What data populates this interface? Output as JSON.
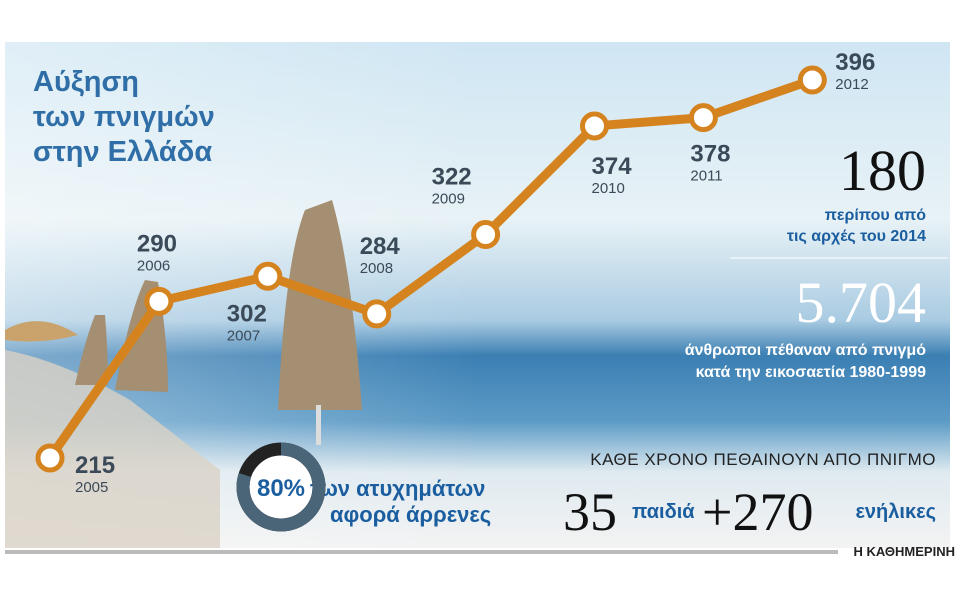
{
  "chart_data": {
    "type": "line",
    "title": [
      "Αύξηση",
      "των πνιγμών",
      "στην Ελλάδα"
    ],
    "categories": [
      "2005",
      "2006",
      "2007",
      "2008",
      "2009",
      "2010",
      "2011",
      "2012"
    ],
    "values": [
      215,
      290,
      302,
      284,
      322,
      374,
      378,
      396
    ],
    "color": "#d5831f",
    "annotations": {
      "since_2014": {
        "number": "180",
        "text": [
          "περίπου από",
          "τις αρχές του 2014"
        ]
      },
      "twenty_years": {
        "number": "5.704",
        "text": [
          "άνθρωποι πέθαναν από πνιγμό",
          "κατά την εικοσαετία 1980-1999"
        ]
      },
      "male_share": {
        "value": 80,
        "label": "80%",
        "text": [
          "των ατυχημάτων",
          "αφορά άρρενες"
        ]
      },
      "yearly": {
        "heading": "ΚΑΘΕ ΧΡΟΝΟ ΠΕΘΑΙΝΟΥΝ ΑΠΟ ΠΝΙΓΜΟ",
        "children_number": "35",
        "children_text": "παιδιά",
        "adults_number": "+270",
        "adults_text": "ενήλικες"
      }
    },
    "source": "Η ΚΑΘΗΜΕΡΙΝΗ"
  }
}
